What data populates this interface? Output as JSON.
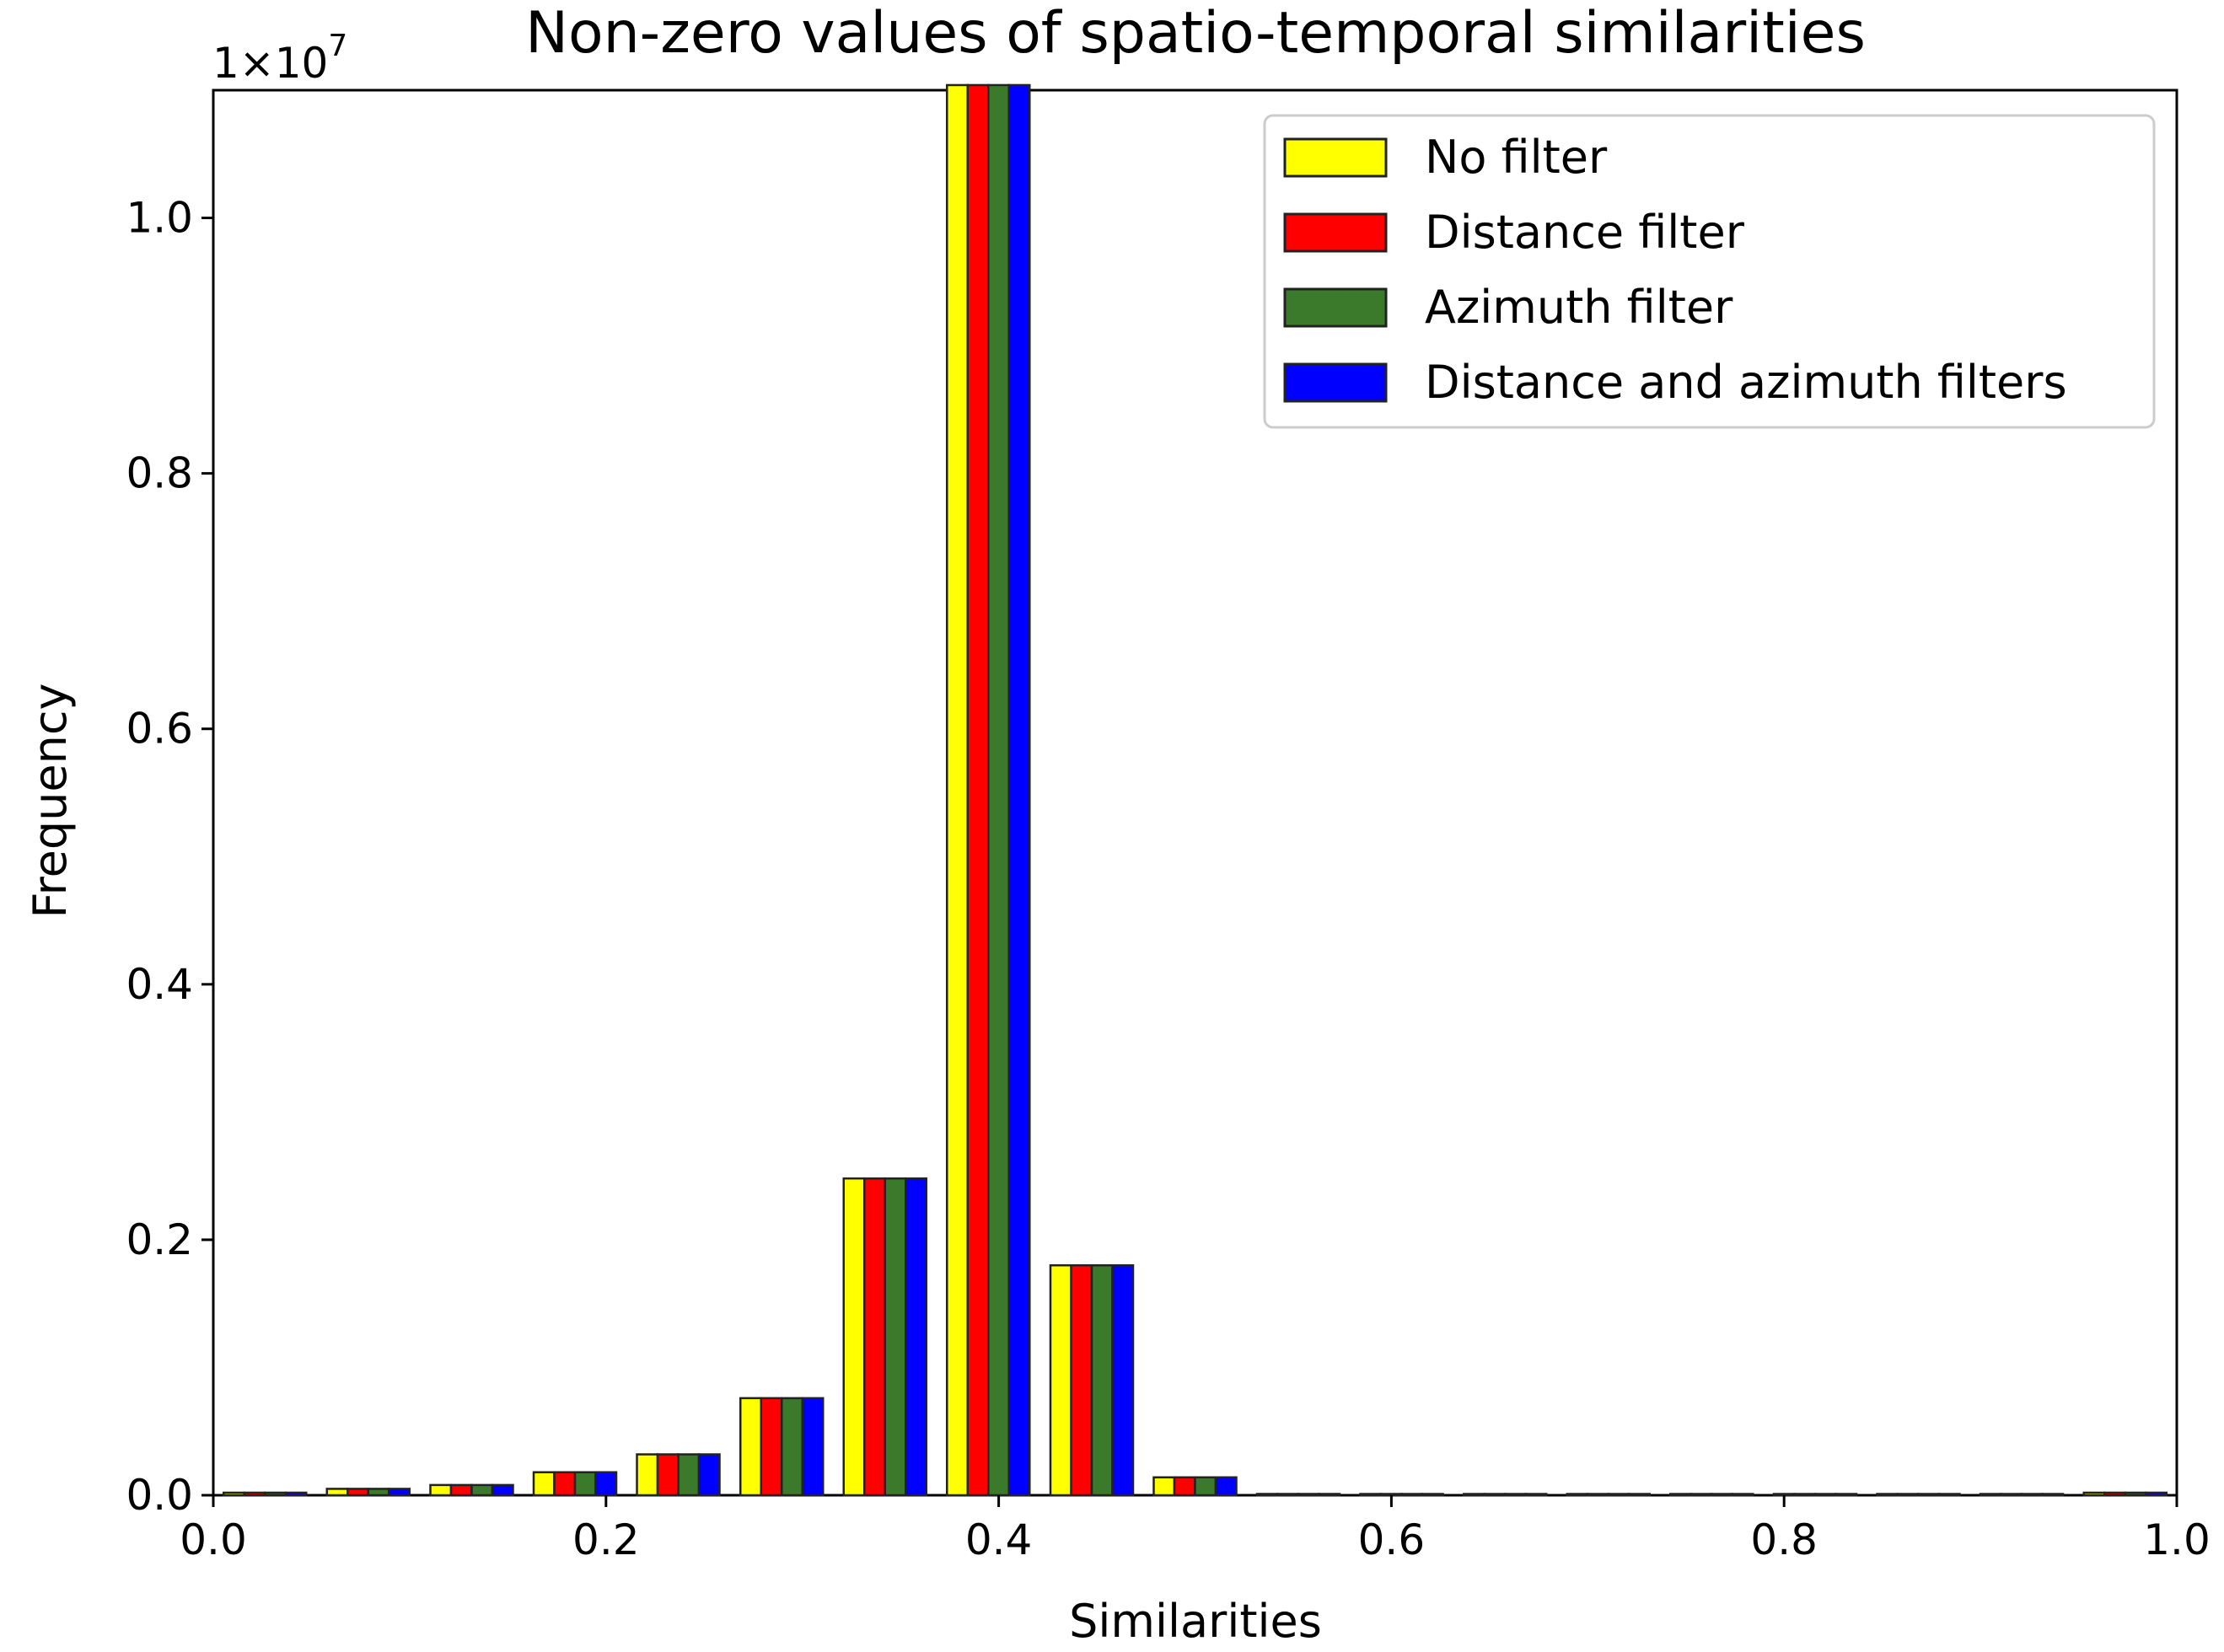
{
  "chart_data": {
    "type": "bar",
    "title": "Non-zero values of spatio-temporal similarities",
    "xlabel": "Similarities",
    "ylabel": "Frequency",
    "y_multiplier_label": "1×10",
    "y_multiplier_exponent": "7",
    "xlim": [
      0.0,
      1.0
    ],
    "ylim": [
      0.0,
      1.1
    ],
    "x_ticks": [
      "0.0",
      "0.2",
      "0.4",
      "0.6",
      "0.8",
      "1.0"
    ],
    "y_ticks": [
      "0.0",
      "0.2",
      "0.4",
      "0.6",
      "0.8",
      "1.0"
    ],
    "bin_width": 0.0526,
    "bin_edges_start": [
      0.0,
      0.0526,
      0.1053,
      0.1579,
      0.2105,
      0.2632,
      0.3158,
      0.3684,
      0.4211,
      0.4737,
      0.5263,
      0.5789,
      0.6316,
      0.6842,
      0.7368,
      0.7895,
      0.8421,
      0.8947,
      0.9474
    ],
    "series": [
      {
        "name": "No filter",
        "color": "#ffff00",
        "values": [
          0.002,
          0.005,
          0.008,
          0.018,
          0.032,
          0.076,
          0.248,
          1.104,
          0.18,
          0.014,
          0.001,
          0.0002,
          0.0002,
          0.0002,
          0.0002,
          0.0002,
          0.0002,
          0.0002,
          0.002
        ]
      },
      {
        "name": "Distance filter",
        "color": "#ff0000",
        "values": [
          0.002,
          0.005,
          0.008,
          0.018,
          0.032,
          0.076,
          0.248,
          1.104,
          0.18,
          0.014,
          0.001,
          0.0002,
          0.0002,
          0.0002,
          0.0002,
          0.0002,
          0.0002,
          0.0002,
          0.002
        ]
      },
      {
        "name": "Azimuth filter",
        "color": "#3a7a2a",
        "values": [
          0.002,
          0.005,
          0.008,
          0.018,
          0.032,
          0.076,
          0.248,
          1.104,
          0.18,
          0.014,
          0.001,
          0.0002,
          0.0002,
          0.0002,
          0.0002,
          0.0002,
          0.0002,
          0.0002,
          0.002
        ]
      },
      {
        "name": "Distance and azimuth filters",
        "color": "#0000ff",
        "values": [
          0.002,
          0.005,
          0.008,
          0.018,
          0.032,
          0.076,
          0.248,
          1.104,
          0.18,
          0.014,
          0.001,
          0.0002,
          0.0002,
          0.0002,
          0.0002,
          0.0002,
          0.0002,
          0.0002,
          0.002
        ]
      }
    ],
    "legend_position": "top-right",
    "grid": false
  }
}
